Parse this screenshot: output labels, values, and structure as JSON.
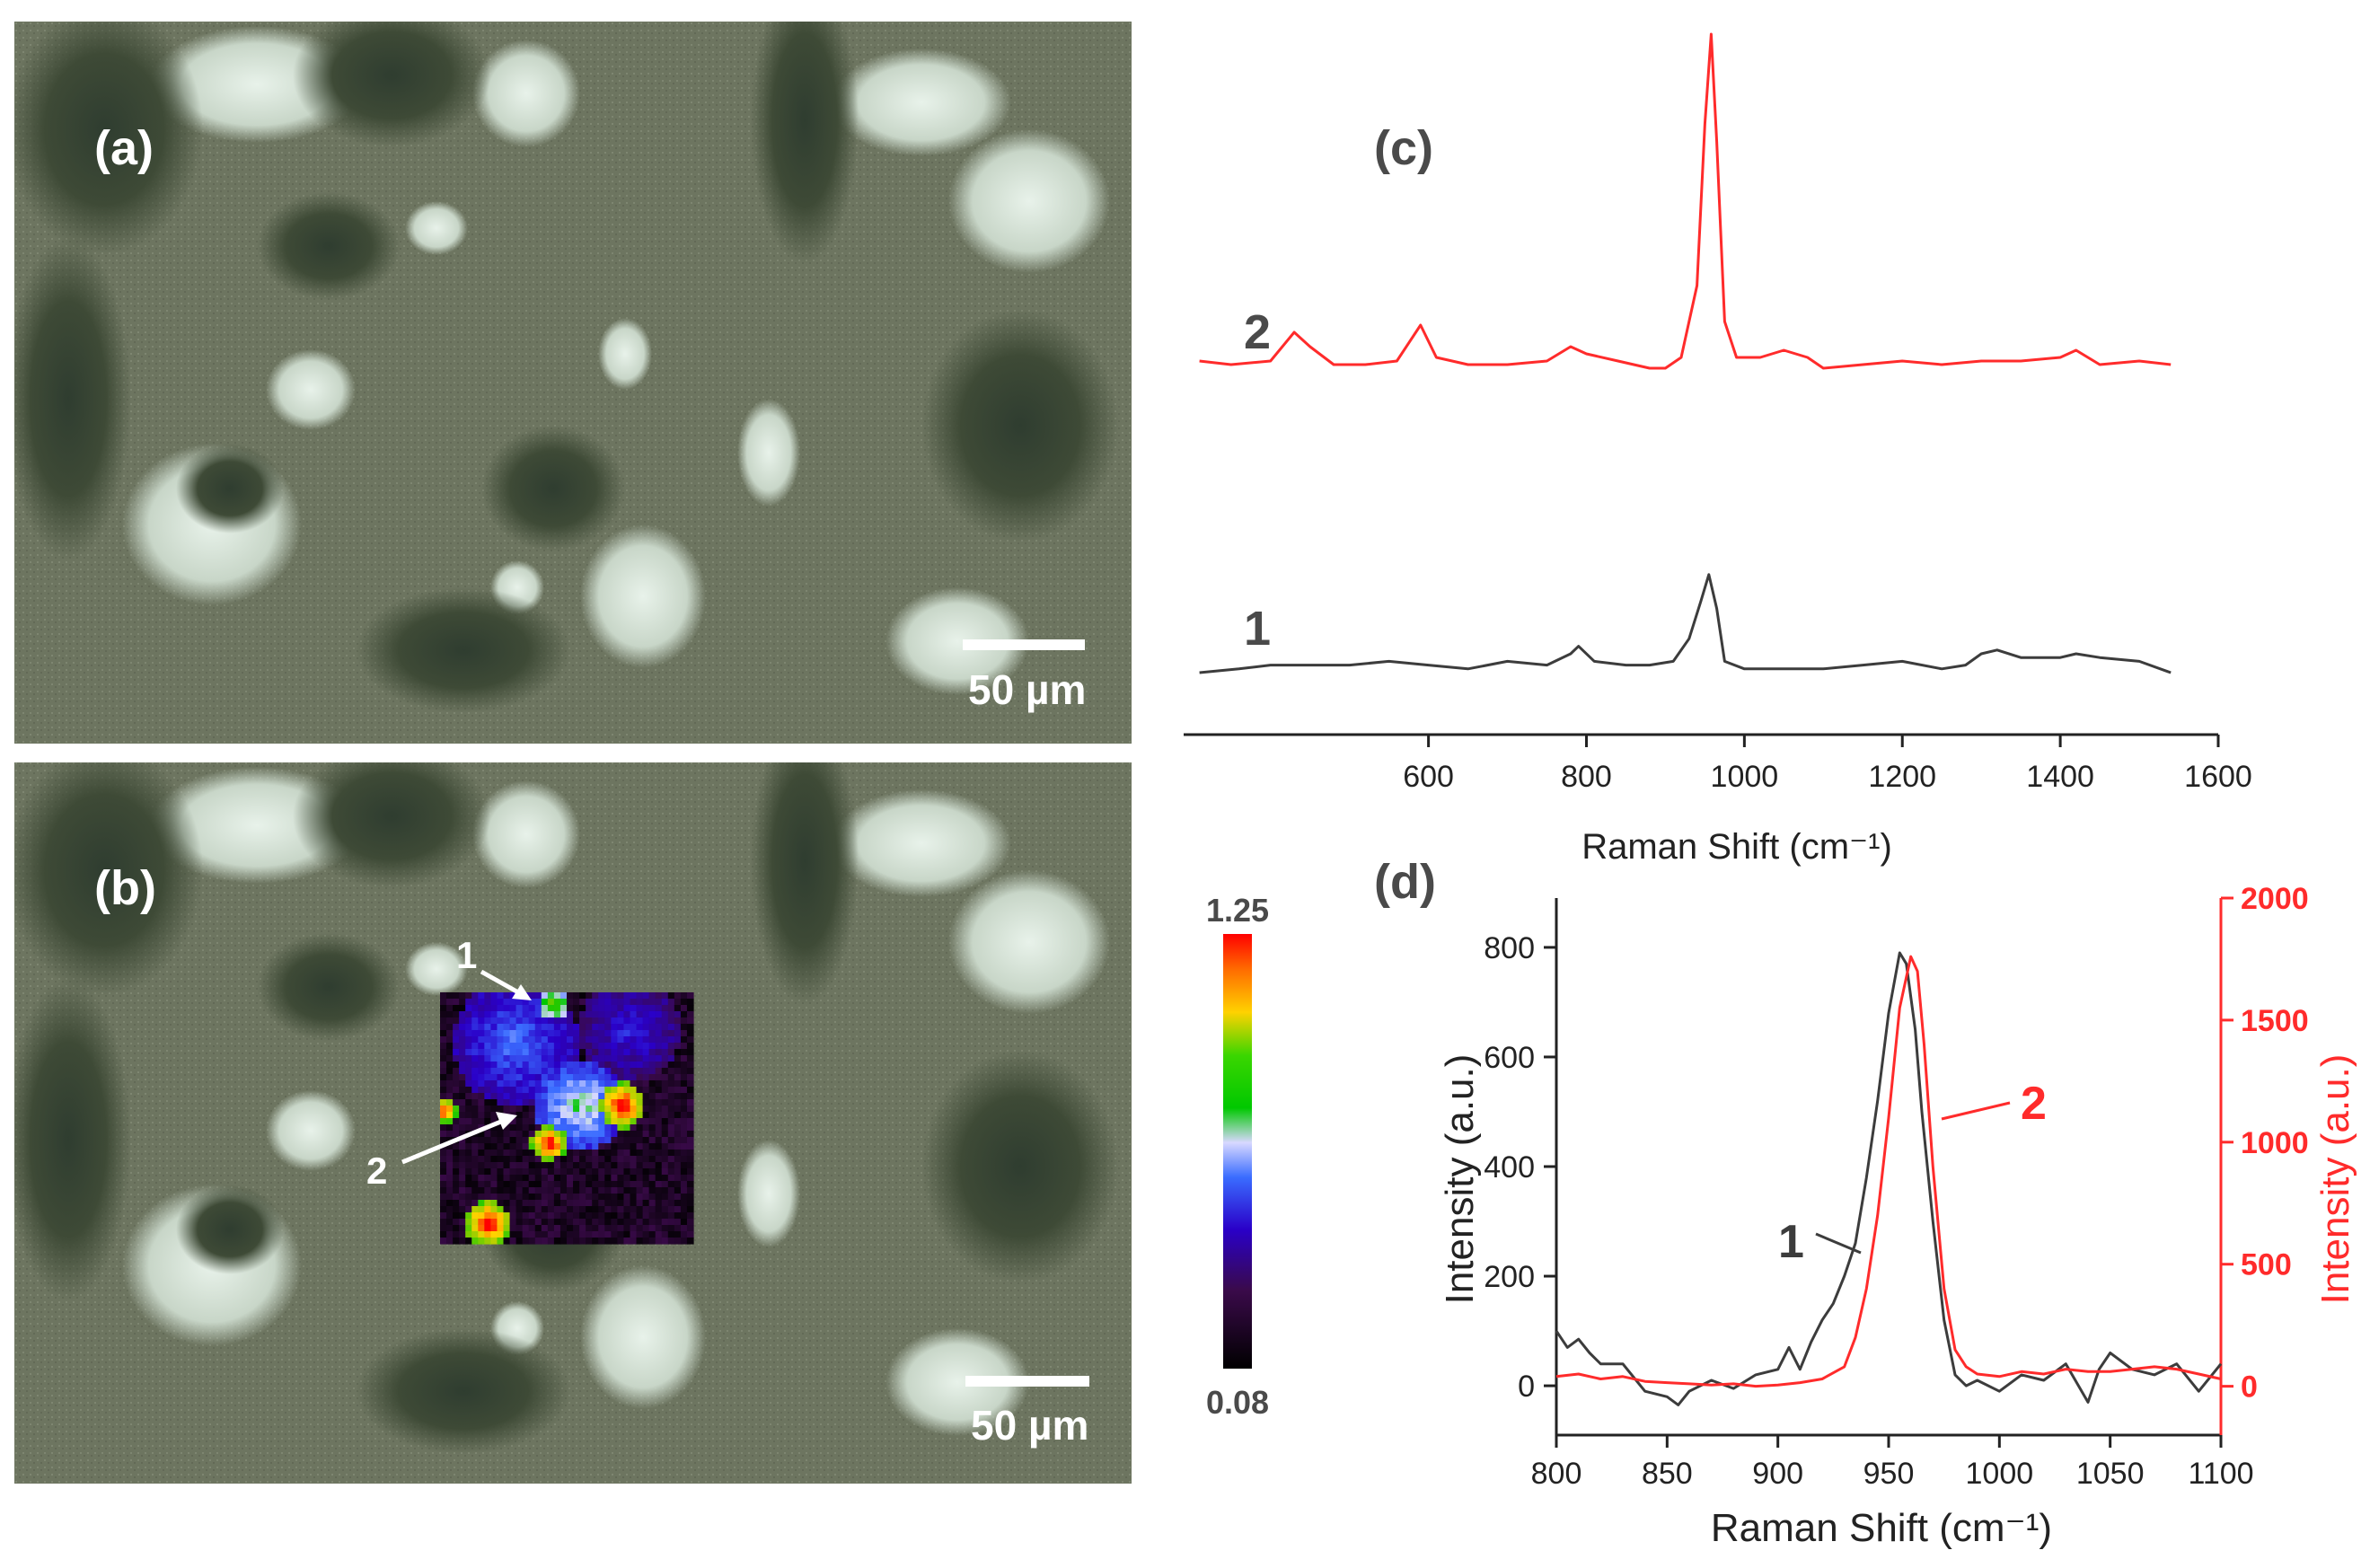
{
  "panels": {
    "a": {
      "label": "(a)",
      "scalebar": "50 µm"
    },
    "b": {
      "label": "(b)",
      "scalebar": "50 µm",
      "point1": "1",
      "point2": "2"
    },
    "c": {
      "label": "(c)"
    },
    "d": {
      "label": "(d)"
    }
  },
  "colorbar": {
    "max_label": "1.25",
    "min_label": "0.08",
    "max": 1.25,
    "min": 0.08
  },
  "colors": {
    "series1": "#3c3c3c",
    "series2": "#ff2b2b",
    "axis2": "#ff2b2b"
  },
  "chart_data": [
    {
      "panel": "c",
      "type": "line",
      "xlabel": "Raman Shift (cm⁻¹)",
      "ylabel": "",
      "xlim": [
        290,
        1600
      ],
      "xticks": [
        600,
        800,
        1000,
        1200,
        1400,
        1600
      ],
      "yaxis_visible": false,
      "series": [
        {
          "name": "2",
          "color": "#ff2b2b",
          "points": [
            [
              310,
              0.09
            ],
            [
              350,
              0.08
            ],
            [
              400,
              0.09
            ],
            [
              430,
              0.17
            ],
            [
              450,
              0.13
            ],
            [
              480,
              0.08
            ],
            [
              520,
              0.08
            ],
            [
              560,
              0.09
            ],
            [
              590,
              0.19
            ],
            [
              610,
              0.1
            ],
            [
              650,
              0.08
            ],
            [
              700,
              0.08
            ],
            [
              750,
              0.09
            ],
            [
              780,
              0.13
            ],
            [
              800,
              0.11
            ],
            [
              840,
              0.09
            ],
            [
              880,
              0.07
            ],
            [
              900,
              0.07
            ],
            [
              920,
              0.1
            ],
            [
              940,
              0.3
            ],
            [
              950,
              0.75
            ],
            [
              958,
              1.0
            ],
            [
              965,
              0.7
            ],
            [
              975,
              0.2
            ],
            [
              990,
              0.1
            ],
            [
              1020,
              0.1
            ],
            [
              1050,
              0.12
            ],
            [
              1080,
              0.1
            ],
            [
              1100,
              0.07
            ],
            [
              1150,
              0.08
            ],
            [
              1200,
              0.09
            ],
            [
              1250,
              0.08
            ],
            [
              1300,
              0.09
            ],
            [
              1350,
              0.09
            ],
            [
              1400,
              0.1
            ],
            [
              1420,
              0.12
            ],
            [
              1450,
              0.08
            ],
            [
              1500,
              0.09
            ],
            [
              1540,
              0.08
            ]
          ]
        },
        {
          "name": "1",
          "color": "#3c3c3c",
          "points": [
            [
              310,
              0.05
            ],
            [
              360,
              0.06
            ],
            [
              400,
              0.07
            ],
            [
              450,
              0.07
            ],
            [
              500,
              0.07
            ],
            [
              550,
              0.08
            ],
            [
              600,
              0.07
            ],
            [
              650,
              0.06
            ],
            [
              700,
              0.08
            ],
            [
              750,
              0.07
            ],
            [
              780,
              0.1
            ],
            [
              790,
              0.12
            ],
            [
              810,
              0.08
            ],
            [
              850,
              0.07
            ],
            [
              880,
              0.07
            ],
            [
              910,
              0.08
            ],
            [
              930,
              0.14
            ],
            [
              945,
              0.24
            ],
            [
              955,
              0.31
            ],
            [
              965,
              0.22
            ],
            [
              975,
              0.08
            ],
            [
              1000,
              0.06
            ],
            [
              1050,
              0.06
            ],
            [
              1100,
              0.06
            ],
            [
              1150,
              0.07
            ],
            [
              1200,
              0.08
            ],
            [
              1250,
              0.06
            ],
            [
              1280,
              0.07
            ],
            [
              1300,
              0.1
            ],
            [
              1320,
              0.11
            ],
            [
              1350,
              0.09
            ],
            [
              1400,
              0.09
            ],
            [
              1420,
              0.1
            ],
            [
              1450,
              0.09
            ],
            [
              1500,
              0.08
            ],
            [
              1540,
              0.05
            ]
          ]
        }
      ]
    },
    {
      "panel": "d",
      "type": "line",
      "xlabel": "Raman Shift (cm⁻¹)",
      "ylabel": "Intensity (a.u.)",
      "y2label": "Intensity (a.u.)",
      "xlim": [
        800,
        1100
      ],
      "ylim": [
        -90,
        890
      ],
      "y2lim": [
        -200,
        2000
      ],
      "xticks": [
        800,
        850,
        900,
        950,
        1000,
        1050,
        1100
      ],
      "yticks": [
        0,
        200,
        400,
        600,
        800
      ],
      "y2ticks": [
        0,
        500,
        1000,
        1500,
        2000
      ],
      "series": [
        {
          "name": "1",
          "axis": "left",
          "color": "#3c3c3c",
          "points": [
            [
              800,
              100
            ],
            [
              805,
              70
            ],
            [
              810,
              85
            ],
            [
              815,
              60
            ],
            [
              820,
              40
            ],
            [
              830,
              40
            ],
            [
              840,
              -10
            ],
            [
              850,
              -20
            ],
            [
              855,
              -35
            ],
            [
              860,
              -10
            ],
            [
              870,
              10
            ],
            [
              880,
              -5
            ],
            [
              890,
              20
            ],
            [
              900,
              30
            ],
            [
              905,
              70
            ],
            [
              910,
              30
            ],
            [
              915,
              80
            ],
            [
              920,
              120
            ],
            [
              925,
              150
            ],
            [
              930,
              200
            ],
            [
              935,
              260
            ],
            [
              940,
              380
            ],
            [
              945,
              520
            ],
            [
              950,
              680
            ],
            [
              955,
              790
            ],
            [
              958,
              770
            ],
            [
              962,
              650
            ],
            [
              965,
              500
            ],
            [
              970,
              300
            ],
            [
              975,
              120
            ],
            [
              980,
              20
            ],
            [
              985,
              0
            ],
            [
              990,
              10
            ],
            [
              1000,
              -10
            ],
            [
              1010,
              20
            ],
            [
              1020,
              10
            ],
            [
              1030,
              40
            ],
            [
              1040,
              -30
            ],
            [
              1045,
              30
            ],
            [
              1050,
              60
            ],
            [
              1060,
              30
            ],
            [
              1070,
              20
            ],
            [
              1080,
              40
            ],
            [
              1090,
              -10
            ],
            [
              1100,
              40
            ]
          ]
        },
        {
          "name": "2",
          "axis": "right",
          "color": "#ff2b2b",
          "points": [
            [
              800,
              40
            ],
            [
              810,
              50
            ],
            [
              820,
              30
            ],
            [
              830,
              40
            ],
            [
              840,
              20
            ],
            [
              850,
              15
            ],
            [
              860,
              10
            ],
            [
              870,
              5
            ],
            [
              880,
              10
            ],
            [
              890,
              0
            ],
            [
              900,
              5
            ],
            [
              910,
              15
            ],
            [
              920,
              30
            ],
            [
              930,
              80
            ],
            [
              935,
              200
            ],
            [
              940,
              400
            ],
            [
              945,
              700
            ],
            [
              950,
              1100
            ],
            [
              955,
              1550
            ],
            [
              960,
              1760
            ],
            [
              963,
              1700
            ],
            [
              966,
              1400
            ],
            [
              970,
              900
            ],
            [
              975,
              400
            ],
            [
              980,
              150
            ],
            [
              985,
              80
            ],
            [
              990,
              50
            ],
            [
              1000,
              40
            ],
            [
              1010,
              60
            ],
            [
              1020,
              50
            ],
            [
              1030,
              70
            ],
            [
              1040,
              60
            ],
            [
              1050,
              60
            ],
            [
              1060,
              70
            ],
            [
              1070,
              80
            ],
            [
              1080,
              70
            ],
            [
              1090,
              50
            ],
            [
              1100,
              30
            ]
          ]
        }
      ]
    }
  ]
}
